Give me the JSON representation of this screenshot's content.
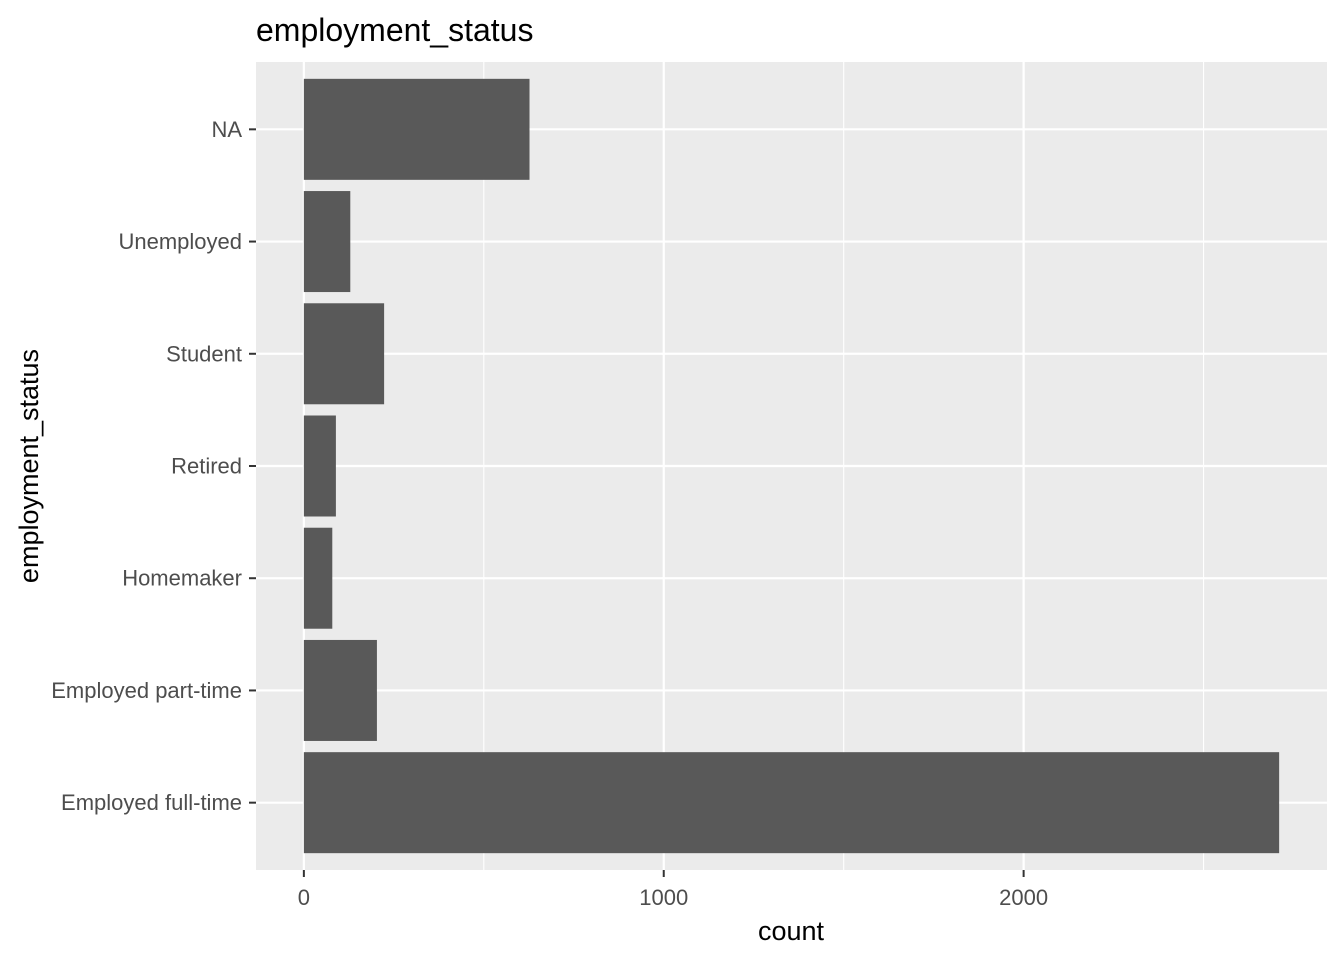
{
  "chart_data": {
    "type": "bar",
    "orientation": "horizontal",
    "title": "employment_status",
    "xlabel": "count",
    "ylabel": "employment_status",
    "categories": [
      "Employed full-time",
      "Employed part-time",
      "Homemaker",
      "Retired",
      "Student",
      "Unemployed",
      "NA"
    ],
    "values": [
      2710,
      203,
      79,
      89,
      223,
      129,
      627
    ],
    "xlim": [
      -133,
      2843
    ],
    "xticks": [
      0,
      1000,
      2000
    ],
    "xtick_labels": [
      "0",
      "1000",
      "2000"
    ],
    "grid": true,
    "colors": {
      "panel": "#ebebeb",
      "grid_major": "#ffffff",
      "bar": "#595959",
      "tick_text": "#4d4d4d",
      "tick_mark": "#333333"
    }
  }
}
